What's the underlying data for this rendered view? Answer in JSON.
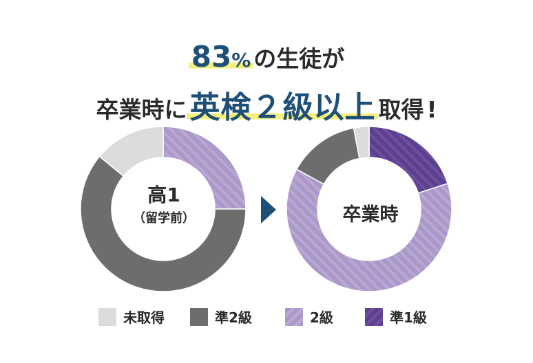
{
  "headline": {
    "line1_percent_number": "83",
    "line1_percent_sign": "%",
    "line1_rest": "の生徒が",
    "line2_prefix": "卒業時に",
    "line2_highlight": "英検２級以上",
    "line2_suffix": "取得",
    "line2_exclaim": "!"
  },
  "colors": {
    "headline_blue": "#1e4f78",
    "highlight_yellow": "#f6ef7c",
    "not_acquired": "#dcdcdc",
    "pre2": "#6d6d6d",
    "grade2": "#ab98c9",
    "pre1": "#5c3f8f",
    "arrow": "#1e4f78"
  },
  "chart_data": [
    {
      "type": "pie",
      "center_label": "高1",
      "center_sublabel": "（留学前）",
      "categories": [
        "2級",
        "準2級",
        "未取得"
      ],
      "values": [
        25,
        61,
        14
      ]
    },
    {
      "type": "pie",
      "center_label": "卒業時",
      "categories": [
        "準1級",
        "2級",
        "準2級",
        "未取得"
      ],
      "values": [
        20,
        63,
        14,
        3
      ]
    }
  ],
  "legend": {
    "items": [
      {
        "label": "未取得",
        "color_key": "not_acquired",
        "pattern": "solid"
      },
      {
        "label": "準2級",
        "color_key": "pre2",
        "pattern": "solid"
      },
      {
        "label": "2級",
        "color_key": "grade2",
        "pattern": "stripe"
      },
      {
        "label": "準1級",
        "color_key": "pre1",
        "pattern": "stripe"
      }
    ]
  }
}
